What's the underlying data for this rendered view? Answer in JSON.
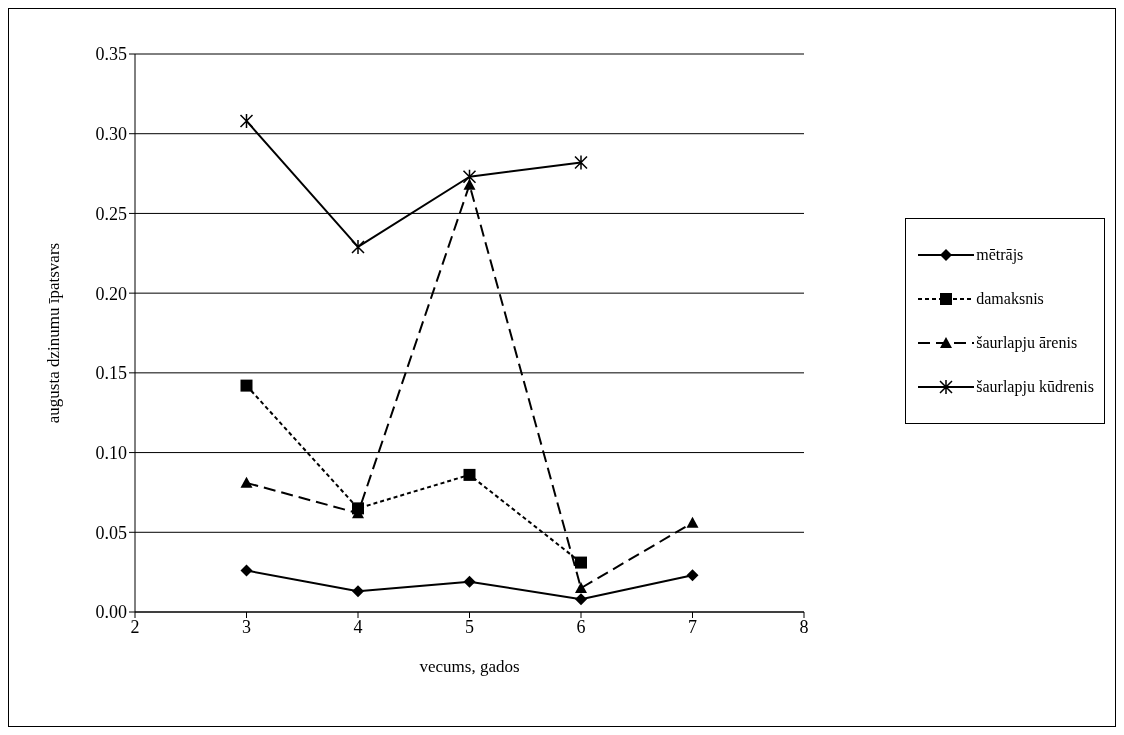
{
  "chart_data": {
    "type": "line",
    "xlabel": "vecums, gados",
    "ylabel": "augusta dzinumu īpatsvars",
    "x": [
      3,
      4,
      5,
      6,
      7
    ],
    "series": [
      {
        "name": "mētrājs",
        "color": "#000000",
        "marker": "diamond",
        "line_style": "solid",
        "values": [
          0.026,
          0.013,
          0.019,
          0.008,
          0.023
        ]
      },
      {
        "name": "damaksnis",
        "color": "#000000",
        "marker": "square",
        "line_style": "dotted",
        "values": [
          0.142,
          0.065,
          0.086,
          0.031,
          null
        ]
      },
      {
        "name": "šaurlapju ārenis",
        "color": "#000000",
        "marker": "triangle",
        "line_style": "dashed",
        "values": [
          0.081,
          0.062,
          0.268,
          0.015,
          0.056
        ]
      },
      {
        "name": "šaurlapju kūdrenis",
        "color": "#000000",
        "marker": "cross",
        "line_style": "solid",
        "values": [
          0.308,
          0.229,
          0.273,
          0.282,
          null
        ]
      }
    ],
    "xlim": [
      2,
      8
    ],
    "xticks": [
      2,
      3,
      4,
      5,
      6,
      7,
      8
    ],
    "ylim": [
      0,
      0.35
    ],
    "yticks": [
      {
        "value": 0,
        "label": "0.00"
      },
      {
        "value": 0.05,
        "label": "0.05"
      },
      {
        "value": 0.1,
        "label": "0.10"
      },
      {
        "value": 0.15,
        "label": "0.15"
      },
      {
        "value": 0.2,
        "label": "0.20"
      },
      {
        "value": 0.25,
        "label": "0.25"
      },
      {
        "value": 0.3,
        "label": "0.30"
      },
      {
        "value": 0.35,
        "label": "0.35"
      }
    ],
    "grid": "y",
    "legend": "right"
  }
}
